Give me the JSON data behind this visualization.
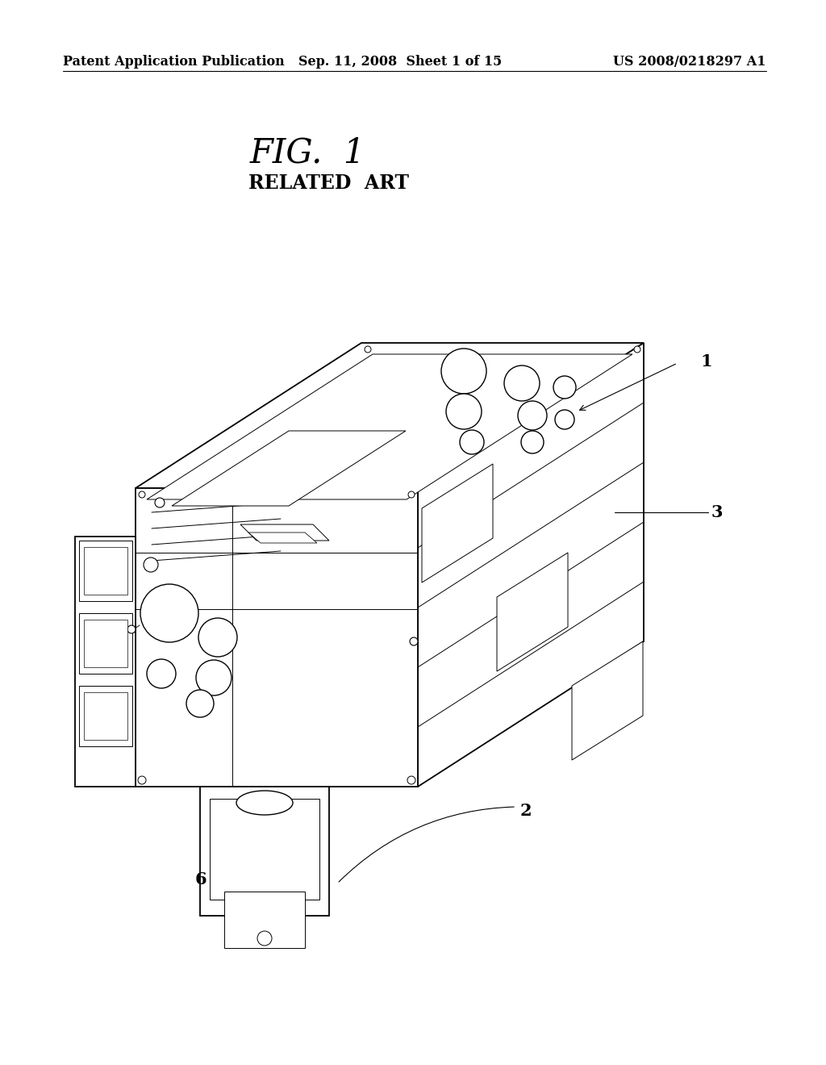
{
  "background_color": "#ffffff",
  "header_left": "Patent Application Publication",
  "header_center": "Sep. 11, 2008  Sheet 1 of 15",
  "header_right": "US 2008/0218297 A1",
  "fig_label": "FIG.  1",
  "fig_sublabel": "RELATED  ART",
  "text_color": "#000000",
  "line_color": "#000000",
  "header_fontsize": 11.5,
  "fig_label_fontsize": 30,
  "fig_sublabel_fontsize": 17,
  "ref_fontsize": 15,
  "lw_main": 1.3,
  "lw_thin": 0.7,
  "lw_ref": 0.8
}
